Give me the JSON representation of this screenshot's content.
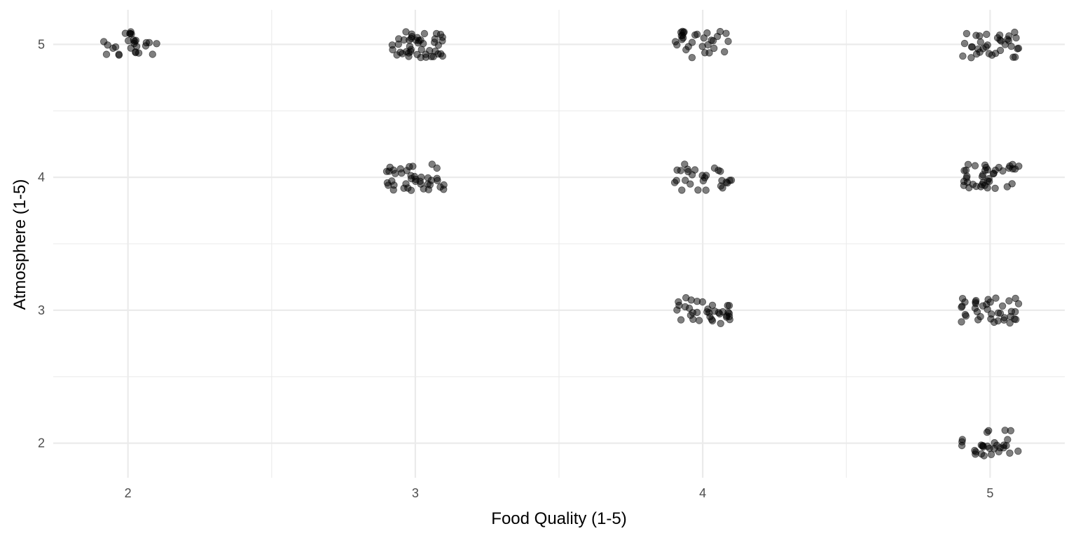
{
  "chart_data": {
    "type": "scatter",
    "title": "",
    "xlabel": "Food Quality (1-5)",
    "ylabel": "Atmosphere (1-5)",
    "x_ticks": [
      "2",
      "3",
      "4",
      "5"
    ],
    "y_ticks": [
      "2",
      "3",
      "4",
      "5"
    ],
    "xlim": [
      1.74,
      5.26
    ],
    "ylim": [
      1.74,
      5.26
    ],
    "grid": true,
    "jitter": true,
    "point_color": "#000000",
    "point_alpha": 0.5,
    "clusters": [
      {
        "x": 2,
        "y": 5,
        "count": 27
      },
      {
        "x": 3,
        "y": 5,
        "count": 45
      },
      {
        "x": 4,
        "y": 5,
        "count": 30
      },
      {
        "x": 5,
        "y": 5,
        "count": 35
      },
      {
        "x": 3,
        "y": 4,
        "count": 40
      },
      {
        "x": 4,
        "y": 4,
        "count": 28
      },
      {
        "x": 5,
        "y": 4,
        "count": 40
      },
      {
        "x": 4,
        "y": 3,
        "count": 35
      },
      {
        "x": 5,
        "y": 3,
        "count": 38
      },
      {
        "x": 5,
        "y": 2,
        "count": 30
      }
    ]
  }
}
